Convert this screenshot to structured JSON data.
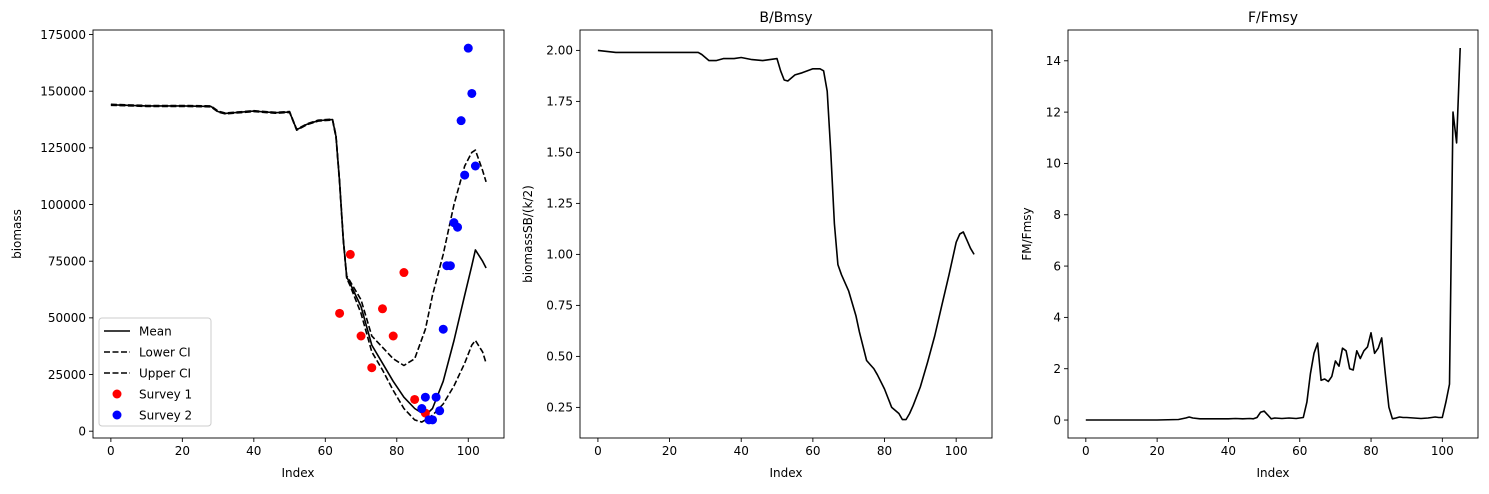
{
  "chart_data": [
    {
      "type": "line",
      "title": "",
      "xlabel": "Index",
      "ylabel": "biomass",
      "xlim": [
        -5,
        110
      ],
      "ylim": [
        -3000,
        177000
      ],
      "xticks": [
        0,
        20,
        40,
        60,
        80,
        100
      ],
      "yticks": [
        0,
        25000,
        50000,
        75000,
        100000,
        125000,
        150000,
        175000
      ],
      "legend": {
        "position": "lower-left",
        "entries": [
          {
            "label": "Mean",
            "style": "solid",
            "color": "#000000"
          },
          {
            "label": "Lower CI",
            "style": "dashed",
            "color": "#000000"
          },
          {
            "label": "Upper CI",
            "style": "dashed",
            "color": "#000000"
          },
          {
            "label": "Survey 1",
            "style": "marker",
            "color": "#ff0000"
          },
          {
            "label": "Survey 2",
            "style": "marker",
            "color": "#0000ff"
          }
        ]
      },
      "series": [
        {
          "name": "Mean",
          "style": "solid",
          "color": "#000000",
          "x": [
            0,
            10,
            20,
            28,
            30,
            32,
            40,
            46,
            50,
            52,
            55,
            58,
            62,
            63,
            64,
            65,
            66,
            67,
            70,
            73,
            76,
            79,
            82,
            85,
            88,
            90,
            93,
            96,
            99,
            101,
            102,
            104,
            105
          ],
          "y": [
            144000,
            143500,
            143500,
            143300,
            141000,
            140200,
            141200,
            140500,
            140800,
            133000,
            135500,
            137000,
            137500,
            130000,
            110000,
            85000,
            68000,
            65000,
            55000,
            38000,
            30000,
            22000,
            15000,
            10000,
            7000,
            10000,
            22000,
            40000,
            60000,
            73000,
            80000,
            75000,
            72000
          ]
        },
        {
          "name": "Lower CI",
          "style": "dashed",
          "color": "#000000",
          "x": [
            0,
            10,
            20,
            28,
            30,
            32,
            40,
            46,
            50,
            52,
            55,
            58,
            62,
            63,
            64,
            65,
            66,
            67,
            70,
            73,
            76,
            79,
            82,
            85,
            87,
            90,
            93,
            96,
            99,
            101,
            102,
            104,
            105
          ],
          "y": [
            143800,
            143300,
            143300,
            143100,
            140800,
            140000,
            141000,
            140300,
            140600,
            132800,
            135300,
            136800,
            137300,
            129500,
            109500,
            84500,
            67500,
            64000,
            52000,
            35000,
            27000,
            18000,
            10000,
            5000,
            4000,
            7000,
            12000,
            20000,
            30000,
            38000,
            40000,
            35000,
            30000
          ]
        },
        {
          "name": "Upper CI",
          "style": "dashed",
          "color": "#000000",
          "x": [
            0,
            10,
            20,
            28,
            30,
            32,
            40,
            46,
            50,
            52,
            55,
            58,
            62,
            63,
            64,
            65,
            66,
            67,
            70,
            73,
            76,
            79,
            82,
            85,
            88,
            90,
            93,
            96,
            99,
            101,
            102,
            104,
            105
          ],
          "y": [
            144200,
            143700,
            143700,
            143500,
            141200,
            140400,
            141400,
            140700,
            141000,
            133200,
            135700,
            137200,
            137700,
            130500,
            110500,
            85500,
            68500,
            66000,
            58000,
            42000,
            37000,
            32000,
            29000,
            32000,
            45000,
            60000,
            78000,
            100000,
            117000,
            123000,
            124000,
            115000,
            110000
          ]
        }
      ],
      "scatter": [
        {
          "name": "Survey 1",
          "color": "#ff0000",
          "x": [
            64,
            67,
            70,
            73,
            76,
            79,
            82,
            85,
            88
          ],
          "y": [
            52000,
            78000,
            42000,
            28000,
            54000,
            42000,
            70000,
            14000,
            8000
          ]
        },
        {
          "name": "Survey 2",
          "color": "#0000ff",
          "x": [
            87,
            88,
            89,
            90,
            91,
            92,
            93,
            94,
            95,
            96,
            97,
            98,
            99,
            100,
            101,
            102
          ],
          "y": [
            10000,
            15000,
            5000,
            5000,
            15000,
            9000,
            45000,
            73000,
            73000,
            92000,
            90000,
            137000,
            113000,
            169000,
            149000,
            117000
          ]
        }
      ]
    },
    {
      "type": "line",
      "title": "B/Bmsy",
      "xlabel": "Index",
      "ylabel": "biomassSB/(k/2)",
      "xlim": [
        -5,
        110
      ],
      "ylim": [
        0.1,
        2.1
      ],
      "xticks": [
        0,
        20,
        40,
        60,
        80,
        100
      ],
      "yticks": [
        0.25,
        0.5,
        0.75,
        1.0,
        1.25,
        1.5,
        1.75,
        2.0
      ],
      "ytick_labels": [
        "0.25",
        "0.50",
        "0.75",
        "1.00",
        "1.25",
        "1.50",
        "1.75",
        "2.00"
      ],
      "series": [
        {
          "name": "B/Bmsy",
          "style": "solid",
          "color": "#000000",
          "x": [
            0,
            5,
            10,
            20,
            28,
            29,
            31,
            33,
            35,
            38,
            40,
            43,
            46,
            48,
            50,
            51,
            52,
            53,
            55,
            57,
            60,
            62,
            63,
            64,
            65,
            66,
            67,
            68,
            70,
            71,
            72,
            73,
            74,
            75,
            76,
            77,
            78,
            80,
            82,
            84,
            85,
            86,
            87,
            88,
            90,
            92,
            94,
            96,
            98,
            100,
            101,
            102,
            103,
            104,
            105
          ],
          "y": [
            2.0,
            1.99,
            1.99,
            1.99,
            1.99,
            1.98,
            1.95,
            1.95,
            1.96,
            1.96,
            1.965,
            1.955,
            1.95,
            1.955,
            1.96,
            1.9,
            1.855,
            1.85,
            1.88,
            1.89,
            1.91,
            1.91,
            1.9,
            1.8,
            1.5,
            1.15,
            0.95,
            0.9,
            0.82,
            0.76,
            0.7,
            0.62,
            0.55,
            0.48,
            0.46,
            0.44,
            0.41,
            0.34,
            0.25,
            0.22,
            0.19,
            0.19,
            0.22,
            0.26,
            0.35,
            0.47,
            0.6,
            0.75,
            0.9,
            1.06,
            1.1,
            1.11,
            1.07,
            1.03,
            1.0
          ]
        }
      ]
    },
    {
      "type": "line",
      "title": "F/Fmsy",
      "xlabel": "Index",
      "ylabel": "FM/Fmsy",
      "xlim": [
        -5,
        110
      ],
      "ylim": [
        -0.7,
        15.2
      ],
      "xticks": [
        0,
        20,
        40,
        60,
        80,
        100
      ],
      "yticks": [
        0,
        2,
        4,
        6,
        8,
        10,
        12,
        14
      ],
      "series": [
        {
          "name": "F/Fmsy",
          "style": "solid",
          "color": "#000000",
          "x": [
            0,
            10,
            20,
            26,
            28,
            29,
            30,
            32,
            34,
            36,
            38,
            40,
            42,
            44,
            46,
            47,
            48,
            49,
            50,
            51,
            52,
            53,
            55,
            57,
            59,
            60,
            61,
            62,
            63,
            64,
            65,
            66,
            67,
            68,
            69,
            70,
            71,
            72,
            73,
            74,
            75,
            76,
            77,
            78,
            79,
            80,
            81,
            82,
            83,
            84,
            85,
            86,
            87,
            88,
            89,
            90,
            92,
            94,
            96,
            98,
            99,
            100,
            101,
            102,
            103,
            104,
            105
          ],
          "y": [
            0.0,
            0.0,
            0.0,
            0.02,
            0.08,
            0.12,
            0.08,
            0.05,
            0.05,
            0.05,
            0.05,
            0.05,
            0.06,
            0.05,
            0.06,
            0.05,
            0.1,
            0.3,
            0.35,
            0.2,
            0.05,
            0.08,
            0.06,
            0.08,
            0.06,
            0.08,
            0.1,
            0.7,
            1.8,
            2.6,
            3.0,
            1.55,
            1.6,
            1.5,
            1.7,
            2.3,
            2.1,
            2.8,
            2.7,
            2.0,
            1.95,
            2.7,
            2.4,
            2.7,
            2.85,
            3.4,
            2.6,
            2.8,
            3.2,
            1.8,
            0.5,
            0.05,
            0.08,
            0.12,
            0.1,
            0.1,
            0.08,
            0.06,
            0.08,
            0.12,
            0.1,
            0.1,
            0.7,
            1.4,
            12.0,
            10.8,
            14.5
          ]
        }
      ]
    }
  ]
}
